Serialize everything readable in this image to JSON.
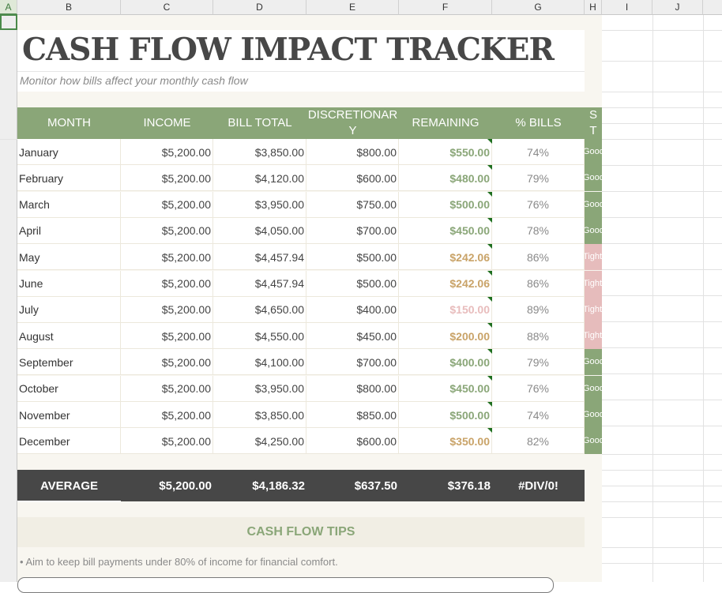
{
  "sheet": {
    "columns": [
      "A",
      "B",
      "C",
      "D",
      "E",
      "F",
      "G",
      "H",
      "I",
      "J"
    ],
    "selected_column": "A"
  },
  "title": "CASH FLOW IMPACT TRACKER",
  "subtitle": "Monitor how bills affect your monthly cash flow",
  "table": {
    "headers": {
      "month": "MONTH",
      "income": "INCOME",
      "bill_total": "BILL TOTAL",
      "discretionary_line1": "DISCRETIONAR",
      "discretionary_line2": "Y",
      "remaining": "REMAINING",
      "pct_bills": "% BILLS",
      "status_line1": "S",
      "status_line2": "T"
    },
    "rows": [
      {
        "month": "January",
        "income": "$5,200.00",
        "bill_total": "$3,850.00",
        "discretionary": "$800.00",
        "remaining": "$550.00",
        "pct": "74%",
        "status": "Good",
        "tone": "good"
      },
      {
        "month": "February",
        "income": "$5,200.00",
        "bill_total": "$4,120.00",
        "discretionary": "$600.00",
        "remaining": "$480.00",
        "pct": "79%",
        "status": "Good",
        "tone": "good"
      },
      {
        "month": "March",
        "income": "$5,200.00",
        "bill_total": "$3,950.00",
        "discretionary": "$750.00",
        "remaining": "$500.00",
        "pct": "76%",
        "status": "Good",
        "tone": "good"
      },
      {
        "month": "April",
        "income": "$5,200.00",
        "bill_total": "$4,050.00",
        "discretionary": "$700.00",
        "remaining": "$450.00",
        "pct": "78%",
        "status": "Good",
        "tone": "good"
      },
      {
        "month": "May",
        "income": "$5,200.00",
        "bill_total": "$4,457.94",
        "discretionary": "$500.00",
        "remaining": "$242.06",
        "pct": "86%",
        "status": "Tight",
        "tone": "mid"
      },
      {
        "month": "June",
        "income": "$5,200.00",
        "bill_total": "$4,457.94",
        "discretionary": "$500.00",
        "remaining": "$242.06",
        "pct": "86%",
        "status": "Tight",
        "tone": "mid"
      },
      {
        "month": "July",
        "income": "$5,200.00",
        "bill_total": "$4,650.00",
        "discretionary": "$400.00",
        "remaining": "$150.00",
        "pct": "89%",
        "status": "Tight",
        "tone": "low"
      },
      {
        "month": "August",
        "income": "$5,200.00",
        "bill_total": "$4,550.00",
        "discretionary": "$450.00",
        "remaining": "$200.00",
        "pct": "88%",
        "status": "Tight",
        "tone": "mid"
      },
      {
        "month": "September",
        "income": "$5,200.00",
        "bill_total": "$4,100.00",
        "discretionary": "$700.00",
        "remaining": "$400.00",
        "pct": "79%",
        "status": "Good",
        "tone": "good"
      },
      {
        "month": "October",
        "income": "$5,200.00",
        "bill_total": "$3,950.00",
        "discretionary": "$800.00",
        "remaining": "$450.00",
        "pct": "76%",
        "status": "Good",
        "tone": "good"
      },
      {
        "month": "November",
        "income": "$5,200.00",
        "bill_total": "$3,850.00",
        "discretionary": "$850.00",
        "remaining": "$500.00",
        "pct": "74%",
        "status": "Good",
        "tone": "good"
      },
      {
        "month": "December",
        "income": "$5,200.00",
        "bill_total": "$4,250.00",
        "discretionary": "$600.00",
        "remaining": "$350.00",
        "pct": "82%",
        "status": "Good",
        "tone": "mid"
      }
    ],
    "average": {
      "label": "AVERAGE",
      "income": "$5,200.00",
      "bill_total": "$4,186.32",
      "discretionary": "$637.50",
      "remaining": "$376.18",
      "pct": "#DIV/0!"
    }
  },
  "tips": {
    "title": "CASH FLOW TIPS",
    "items": [
      "• Aim to keep bill payments under 80% of income for financial comfort."
    ]
  },
  "colors": {
    "accent_green": "#8aa678",
    "accent_gold": "#c9a368",
    "accent_pink": "#e6bcbc",
    "dark": "#474747"
  }
}
